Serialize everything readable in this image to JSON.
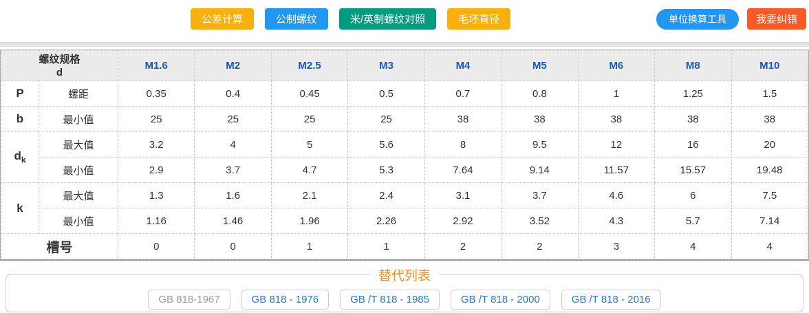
{
  "colors": {
    "amber": "#f7b010",
    "blue": "#2196f3",
    "teal": "#009b80",
    "red": "#fa5a28",
    "title_orange": "#ff8d1a",
    "link_blue": "#2779cf",
    "inactive_grey": "#9b9b9b",
    "header_blue": "#1c57b8"
  },
  "toolbar": {
    "buttons": [
      {
        "label": "公差计算",
        "color": "amber"
      },
      {
        "label": "公制螺纹",
        "color": "blue"
      },
      {
        "label": "米/英制螺纹对照",
        "color": "teal"
      },
      {
        "label": "毛坯直径",
        "color": "amber"
      }
    ],
    "unit_converter_label": "单位换算工具",
    "report_error_label": "我要纠错"
  },
  "table": {
    "corner": {
      "line1": "螺纹规格",
      "line2": "d"
    },
    "columns": [
      "M1.6",
      "M2",
      "M2.5",
      "M3",
      "M4",
      "M5",
      "M6",
      "M8",
      "M10"
    ],
    "row_groups": [
      {
        "label": "P",
        "span_all": false,
        "rows": [
          {
            "sub": "螺距",
            "values": [
              "0.35",
              "0.4",
              "0.45",
              "0.5",
              "0.7",
              "0.8",
              "1",
              "1.25",
              "1.5"
            ]
          }
        ]
      },
      {
        "label": "b",
        "span_all": false,
        "rows": [
          {
            "sub": "最小值",
            "values": [
              "25",
              "25",
              "25",
              "25",
              "38",
              "38",
              "38",
              "38",
              "38"
            ]
          }
        ]
      },
      {
        "label": "d_k",
        "span_all": false,
        "rows": [
          {
            "sub": "最大值",
            "values": [
              "3.2",
              "4",
              "5",
              "5.6",
              "8",
              "9.5",
              "12",
              "16",
              "20"
            ]
          },
          {
            "sub": "最小值",
            "values": [
              "2.9",
              "3.7",
              "4.7",
              "5.3",
              "7.64",
              "9.14",
              "11.57",
              "15.57",
              "19.48"
            ]
          }
        ]
      },
      {
        "label": "k",
        "span_all": false,
        "rows": [
          {
            "sub": "最大值",
            "values": [
              "1.3",
              "1.6",
              "2.1",
              "2.4",
              "3.1",
              "3.7",
              "4.6",
              "6",
              "7.5"
            ]
          },
          {
            "sub": "最小值",
            "values": [
              "1.16",
              "1.46",
              "1.96",
              "2.26",
              "2.92",
              "3.52",
              "4.3",
              "5.7",
              "7.14"
            ]
          }
        ]
      },
      {
        "label": "槽号",
        "span_all": true,
        "rows": [
          {
            "sub": "",
            "values": [
              "0",
              "0",
              "1",
              "1",
              "2",
              "2",
              "3",
              "4",
              "4"
            ]
          }
        ]
      }
    ]
  },
  "alternatives": {
    "title": "替代列表",
    "items": [
      {
        "label": "GB 818-1967",
        "active": false
      },
      {
        "label": "GB 818 - 1976",
        "active": true
      },
      {
        "label": "GB /T 818 - 1985",
        "active": true
      },
      {
        "label": "GB /T 818 - 2000",
        "active": true
      },
      {
        "label": "GB /T 818 - 2016",
        "active": true
      }
    ]
  }
}
